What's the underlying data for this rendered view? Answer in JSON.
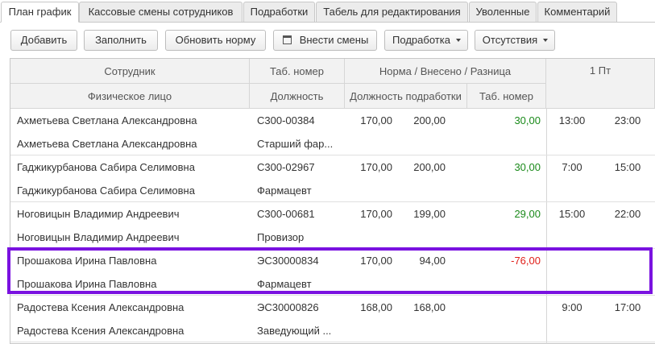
{
  "tabs": [
    "План график",
    "Кассовые смены сотрудников",
    "Подработки",
    "Табель для редактирования",
    "Уволенные",
    "Комментарий"
  ],
  "buttons": [
    "Добавить",
    "Заполнить",
    "Обновить норму",
    "Внести смены",
    "Подработка",
    "Отсутствия"
  ],
  "table": {
    "header": [
      [
        "Сотрудник",
        "Таб. номер",
        "Норма / Внесено / Разница",
        "1 Пт"
      ],
      [
        "Физическое лицо",
        "Должность",
        "Должность подработки",
        "Таб. номер"
      ]
    ],
    "rows": [
      {
        "employee": "Ахметьева Светлана Александровна",
        "tab_number": "С300-00384",
        "norm": "170,00",
        "entered": "200,00",
        "difference": "30,00",
        "start": "13:00",
        "end": "23:00",
        "person": "Ахметьева Светлана Александровна",
        "position": "Старший фар..."
      },
      {
        "employee": "Гаджикурбанова Сабира Селимовна",
        "tab_number": "С300-02967",
        "norm": "170,00",
        "entered": "200,00",
        "difference": "30,00",
        "start": "7:00",
        "end": "15:00",
        "person": "Гаджикурбанова Сабира Селимовна",
        "position": "Фармацевт"
      },
      {
        "employee": "Ноговицын Владимир Андреевич",
        "tab_number": "С300-00681",
        "norm": "170,00",
        "entered": "199,00",
        "difference": "29,00",
        "start": "15:00",
        "end": "22:00",
        "person": "Ноговицын Владимир Андреевич",
        "position": "Провизор"
      },
      {
        "employee": "Прошакова Ирина Павловна",
        "tab_number": "ЭС30000834",
        "norm": "170,00",
        "entered": "94,00",
        "difference": "-76,00",
        "start": null,
        "end": null,
        "person": "Прошакова Ирина Павловна",
        "position": "Фармацевт"
      },
      {
        "employee": "Радостева Ксения Александровна",
        "tab_number": "ЭС30000826",
        "norm": "168,00",
        "entered": "168,00",
        "difference": null,
        "start": "9:00",
        "end": "17:00",
        "person": "Радостева Ксения Александровна",
        "position": "Заведующий ..."
      }
    ]
  }
}
